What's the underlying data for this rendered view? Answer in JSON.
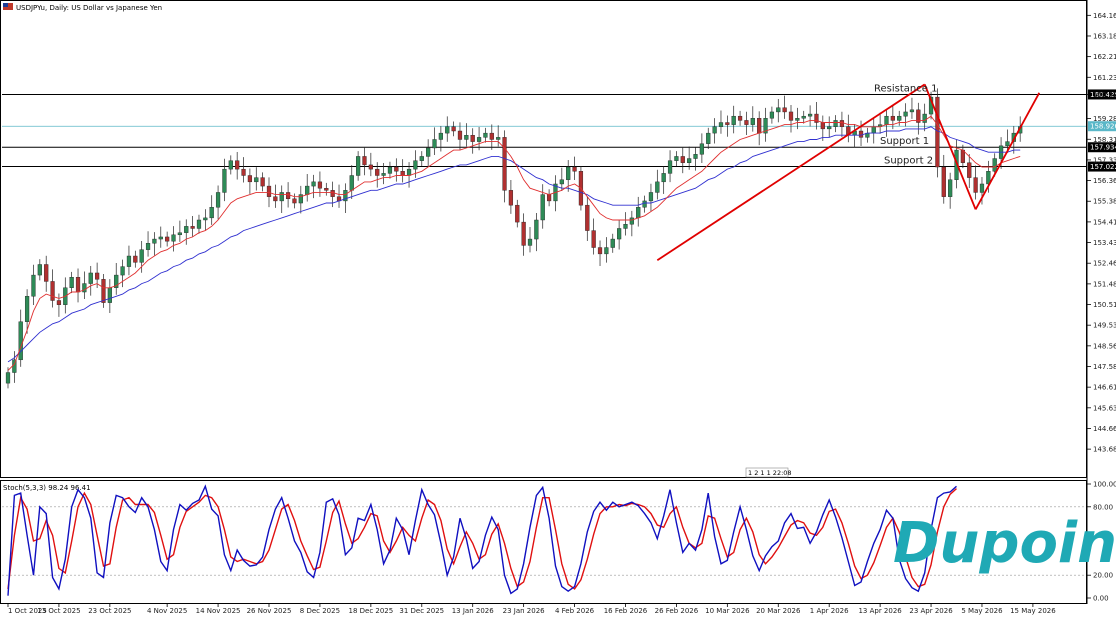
{
  "header": {
    "title": "USDJPYu, Daily:  US Dollar vs Japanese Yen"
  },
  "timer_badge": "1  2  1  1  22:08",
  "logo": {
    "text": "Dupoin"
  },
  "colors": {
    "up": "#2e8b57",
    "down": "#b03030",
    "ema_fast": "#e03030",
    "ema_slow": "#3030d0",
    "trendline": "#e00000",
    "current_price_line": "#5ab7c8",
    "stoch_k": "#1010c0",
    "stoch_d": "#e01010",
    "logo": "#1fa9b5"
  },
  "chart_data": [
    {
      "type": "candlestick",
      "symbol": "USDJPYu",
      "timeframe": "Daily",
      "ylim": [
        142.7,
        164.6
      ],
      "y_ticks": [
        "164.160",
        "163.185",
        "162.210",
        "161.235",
        "160.425",
        "159.285",
        "158.310",
        "157.335",
        "156.360",
        "155.385",
        "154.410",
        "153.435",
        "152.460",
        "151.485",
        "150.510",
        "149.535",
        "148.560",
        "147.585",
        "146.610",
        "145.635",
        "144.660",
        "143.685"
      ],
      "x_ticks": [
        {
          "i": 0,
          "label": "1 Oct 2025"
        },
        {
          "i": 8,
          "label": "13 Oct 2025"
        },
        {
          "i": 16,
          "label": "23 Oct 2025"
        },
        {
          "i": 25,
          "label": "4 Nov 2025"
        },
        {
          "i": 33,
          "label": "14 Nov 2025"
        },
        {
          "i": 41,
          "label": "26 Nov 2025"
        },
        {
          "i": 49,
          "label": "8 Dec 2025"
        },
        {
          "i": 57,
          "label": "18 Dec 2025"
        },
        {
          "i": 65,
          "label": "31 Dec 2025"
        },
        {
          "i": 73,
          "label": "13 Jan 2026"
        },
        {
          "i": 81,
          "label": "23 Jan 2026"
        },
        {
          "i": 89,
          "label": "4 Feb 2026"
        },
        {
          "i": 97,
          "label": "16 Feb 2026"
        },
        {
          "i": 105,
          "label": "26 Feb 2026"
        },
        {
          "i": 113,
          "label": "10 Mar 2026"
        },
        {
          "i": 121,
          "label": "20 Mar 2026"
        },
        {
          "i": 129,
          "label": "1 Apr 2026"
        },
        {
          "i": 137,
          "label": "13 Apr 2026"
        },
        {
          "i": 145,
          "label": "23 Apr 2026"
        },
        {
          "i": 153,
          "label": "5 May 2026"
        },
        {
          "i": 161,
          "label": "15 May 2026"
        }
      ],
      "close": [
        147.3,
        147.9,
        149.7,
        150.9,
        151.9,
        152.4,
        151.6,
        150.7,
        150.5,
        151.3,
        151.8,
        151.1,
        151.5,
        152.0,
        151.7,
        150.6,
        151.3,
        151.9,
        152.3,
        152.8,
        152.5,
        153.1,
        153.4,
        153.6,
        153.7,
        153.5,
        153.8,
        153.9,
        154.2,
        154.1,
        154.5,
        154.6,
        155.1,
        155.8,
        156.9,
        157.3,
        156.9,
        156.6,
        156.3,
        156.5,
        156.1,
        155.6,
        155.4,
        155.8,
        155.5,
        155.3,
        155.7,
        156.1,
        156.3,
        156.0,
        155.9,
        155.6,
        155.4,
        155.9,
        156.6,
        157.5,
        157.1,
        156.9,
        156.6,
        156.7,
        157.0,
        156.8,
        156.6,
        156.9,
        157.3,
        157.5,
        157.9,
        158.3,
        158.6,
        158.9,
        158.7,
        158.3,
        158.5,
        158.2,
        158.4,
        158.6,
        158.3,
        158.4,
        155.9,
        155.2,
        154.4,
        153.3,
        153.6,
        154.5,
        155.7,
        155.4,
        156.2,
        156.4,
        157.0,
        156.8,
        155.2,
        154.0,
        153.2,
        152.9,
        153.2,
        153.6,
        154.1,
        154.3,
        154.6,
        155.1,
        155.4,
        155.8,
        156.3,
        156.7,
        157.3,
        157.5,
        157.2,
        157.4,
        157.6,
        158.1,
        158.6,
        158.9,
        159.1,
        159.0,
        159.4,
        159.2,
        159.0,
        159.3,
        158.6,
        159.3,
        159.6,
        159.8,
        159.6,
        159.2,
        159.3,
        159.4,
        159.5,
        159.1,
        158.8,
        158.9,
        159.2,
        158.9,
        158.5,
        158.7,
        158.4,
        158.6,
        158.9,
        159.0,
        159.4,
        159.2,
        159.4,
        159.6,
        159.7,
        159.1,
        159.5,
        160.3,
        157.0,
        155.6,
        156.4,
        157.8,
        157.2,
        156.5,
        155.8,
        156.2,
        156.8,
        157.4,
        158.0,
        158.2,
        158.6,
        158.9
      ],
      "ema_fast": [
        147.4,
        147.7,
        148.5,
        149.3,
        150.2,
        150.8,
        151.0,
        150.9,
        150.8,
        150.9,
        151.1,
        151.1,
        151.2,
        151.4,
        151.5,
        151.3,
        151.3,
        151.4,
        151.6,
        151.8,
        152.0,
        152.3,
        152.6,
        152.8,
        153.0,
        153.1,
        153.3,
        153.4,
        153.6,
        153.7,
        153.9,
        154.0,
        154.2,
        154.5,
        154.9,
        155.3,
        155.5,
        155.6,
        155.7,
        155.8,
        155.8,
        155.8,
        155.7,
        155.7,
        155.7,
        155.6,
        155.6,
        155.7,
        155.8,
        155.8,
        155.8,
        155.8,
        155.7,
        155.7,
        155.9,
        156.1,
        156.3,
        156.3,
        156.4,
        156.5,
        156.5,
        156.6,
        156.6,
        156.6,
        156.7,
        156.8,
        157.0,
        157.2,
        157.4,
        157.6,
        157.8,
        157.8,
        157.9,
        158.0,
        158.1,
        158.2,
        158.2,
        158.2,
        157.9,
        157.5,
        157.0,
        156.4,
        156.0,
        155.9,
        155.8,
        155.7,
        155.8,
        155.9,
        156.1,
        156.2,
        156.0,
        155.6,
        155.2,
        154.8,
        154.6,
        154.5,
        154.5,
        154.5,
        154.5,
        154.6,
        154.7,
        154.9,
        155.1,
        155.4,
        155.7,
        156.0,
        156.2,
        156.4,
        156.6,
        156.8,
        157.1,
        157.4,
        157.7,
        157.9,
        158.1,
        158.3,
        158.4,
        158.5,
        158.6,
        158.7,
        158.8,
        158.9,
        159.0,
        159.0,
        159.1,
        159.1,
        159.2,
        159.2,
        159.1,
        159.1,
        159.1,
        159.1,
        159.0,
        159.0,
        158.9,
        158.9,
        158.9,
        158.9,
        159.0,
        159.0,
        159.1,
        159.1,
        159.2,
        159.2,
        159.2,
        159.4,
        159.0,
        158.5,
        158.0,
        157.9,
        157.8,
        157.5,
        157.2,
        157.0,
        157.0,
        157.0,
        157.2,
        157.3,
        157.4,
        157.5
      ],
      "ema_slow": [
        147.8,
        148.0,
        148.3,
        148.6,
        148.9,
        149.2,
        149.4,
        149.6,
        149.7,
        149.9,
        150.1,
        150.2,
        150.3,
        150.5,
        150.6,
        150.7,
        150.8,
        150.9,
        151.0,
        151.2,
        151.3,
        151.5,
        151.6,
        151.8,
        152.0,
        152.1,
        152.3,
        152.4,
        152.6,
        152.7,
        152.9,
        153.0,
        153.2,
        153.3,
        153.5,
        153.7,
        153.8,
        154.0,
        154.1,
        154.2,
        154.3,
        154.4,
        154.5,
        154.6,
        154.7,
        154.8,
        154.9,
        155.0,
        155.1,
        155.2,
        155.3,
        155.3,
        155.4,
        155.5,
        155.6,
        155.7,
        155.8,
        155.9,
        155.9,
        156.0,
        156.1,
        156.2,
        156.2,
        156.3,
        156.4,
        156.5,
        156.6,
        156.7,
        156.8,
        156.9,
        157.0,
        157.1,
        157.1,
        157.2,
        157.3,
        157.4,
        157.5,
        157.5,
        157.4,
        157.3,
        157.1,
        156.9,
        156.7,
        156.5,
        156.4,
        156.2,
        156.1,
        156.0,
        156.0,
        155.9,
        155.8,
        155.7,
        155.5,
        155.4,
        155.3,
        155.2,
        155.2,
        155.2,
        155.2,
        155.2,
        155.3,
        155.3,
        155.4,
        155.5,
        155.6,
        155.7,
        155.8,
        155.9,
        156.0,
        156.2,
        156.4,
        156.5,
        156.7,
        156.9,
        157.0,
        157.2,
        157.3,
        157.5,
        157.6,
        157.7,
        157.8,
        157.9,
        158.0,
        158.1,
        158.2,
        158.2,
        158.3,
        158.3,
        158.4,
        158.4,
        158.5,
        158.5,
        158.5,
        158.5,
        158.5,
        158.6,
        158.6,
        158.6,
        158.7,
        158.7,
        158.7,
        158.8,
        158.8,
        158.8,
        158.8,
        158.9,
        158.7,
        158.6,
        158.4,
        158.3,
        158.2,
        158.1,
        157.9,
        157.8,
        157.7,
        157.7,
        157.7,
        157.7,
        157.8,
        157.8
      ],
      "levels": [
        {
          "name": "Resistance 1",
          "price": 160.425,
          "label": "160.425"
        },
        {
          "name": "Support 1",
          "price": 157.934,
          "label": "157.934"
        },
        {
          "name": "Support 2",
          "price": 157.022,
          "label": "157.022"
        }
      ],
      "current_price": {
        "price": 158.926,
        "label": "158.926"
      },
      "trendlines": [
        {
          "from": [
            102,
            152.6
          ],
          "to": [
            144,
            160.9
          ]
        },
        {
          "from": [
            144,
            160.9
          ],
          "to": [
            152,
            155.0
          ]
        },
        {
          "from": [
            152,
            155.0
          ],
          "to": [
            162,
            160.5
          ]
        }
      ],
      "series": [
        {
          "name": "Price",
          "values": "close"
        },
        {
          "name": "",
          "values": "ema_fast"
        },
        {
          "name": "",
          "values": "ema_slow"
        }
      ]
    },
    {
      "type": "line",
      "indicator": "Stoch(5,3,3)",
      "label": "Stoch(5,3,3) 98.24 96.41",
      "ylim": [
        0,
        100
      ],
      "y_ticks": [
        "100.00",
        "80.00",
        "20.00",
        "0.00"
      ],
      "series": [
        {
          "name": "%K",
          "values": [
            2,
            90,
            92,
            55,
            20,
            80,
            74,
            18,
            8,
            34,
            80,
            95,
            88,
            70,
            22,
            18,
            66,
            90,
            88,
            80,
            75,
            88,
            80,
            60,
            32,
            24,
            60,
            82,
            77,
            83,
            86,
            98,
            78,
            72,
            38,
            24,
            42,
            33,
            28,
            29,
            36,
            60,
            78,
            88,
            70,
            50,
            40,
            23,
            18,
            40,
            84,
            87,
            73,
            38,
            44,
            70,
            68,
            82,
            60,
            30,
            42,
            70,
            60,
            38,
            68,
            95,
            82,
            73,
            48,
            20,
            36,
            70,
            52,
            26,
            32,
            55,
            71,
            60,
            20,
            4,
            8,
            30,
            62,
            90,
            97,
            70,
            28,
            10,
            6,
            10,
            30,
            58,
            76,
            84,
            77,
            84,
            80,
            82,
            84,
            81,
            74,
            66,
            52,
            72,
            95,
            66,
            40,
            48,
            42,
            60,
            92,
            54,
            30,
            33,
            58,
            80,
            60,
            37,
            24,
            37,
            45,
            50,
            66,
            74,
            61,
            62,
            48,
            58,
            73,
            86,
            71,
            53,
            32,
            11,
            14,
            32,
            48,
            60,
            77,
            70,
            34,
            17,
            9,
            6,
            22,
            60,
            88,
            92,
            93,
            98
          ]
        },
        {
          "name": "%D",
          "values": [
            8,
            55,
            88,
            78,
            50,
            52,
            68,
            55,
            26,
            22,
            50,
            80,
            92,
            82,
            55,
            28,
            30,
            62,
            86,
            88,
            82,
            82,
            82,
            75,
            55,
            34,
            38,
            62,
            76,
            80,
            84,
            90,
            88,
            80,
            60,
            36,
            32,
            34,
            32,
            30,
            32,
            42,
            60,
            78,
            82,
            68,
            50,
            37,
            25,
            27,
            50,
            75,
            85,
            65,
            48,
            52,
            62,
            74,
            72,
            50,
            40,
            50,
            62,
            55,
            50,
            70,
            86,
            82,
            68,
            43,
            30,
            45,
            58,
            48,
            34,
            38,
            56,
            65,
            48,
            26,
            10,
            14,
            32,
            62,
            88,
            88,
            60,
            30,
            12,
            8,
            16,
            34,
            56,
            74,
            80,
            80,
            82,
            81,
            83,
            82,
            80,
            74,
            64,
            62,
            74,
            80,
            62,
            48,
            44,
            48,
            72,
            70,
            52,
            36,
            40,
            60,
            70,
            58,
            38,
            30,
            36,
            44,
            54,
            64,
            68,
            66,
            57,
            55,
            62,
            76,
            78,
            66,
            48,
            28,
            17,
            20,
            31,
            46,
            62,
            70,
            58,
            36,
            18,
            10,
            12,
            29,
            58,
            80,
            91,
            96
          ]
        }
      ]
    }
  ]
}
